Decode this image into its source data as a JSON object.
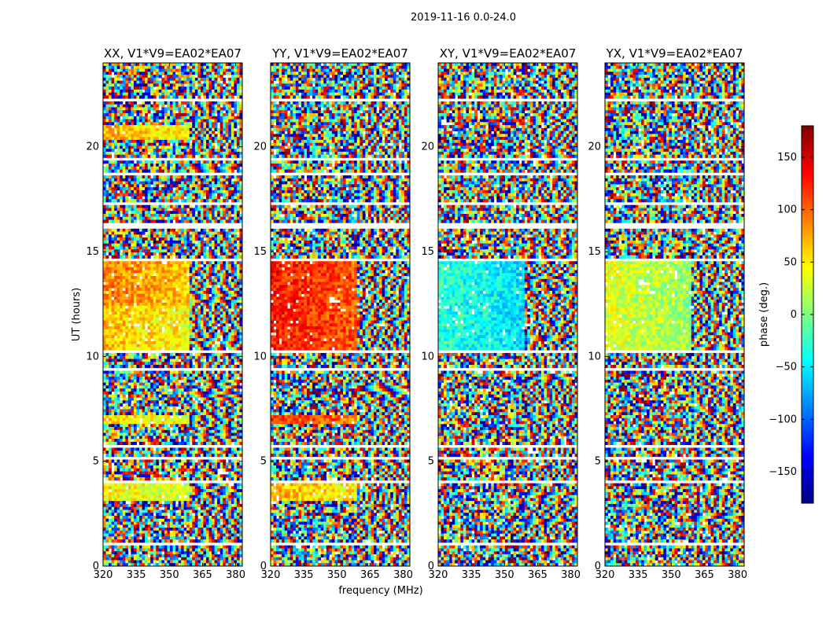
{
  "suptitle": "2019-11-16 0.0-24.0",
  "colors": {
    "background": "#ffffff",
    "missing": "#ffffff",
    "axes": "#000000"
  },
  "chart_data": {
    "type": "heatmap",
    "colormap": "jet",
    "xlabel": "frequency (MHz)",
    "ylabel": "UT (hours)",
    "xlim": [
      320,
      383
    ],
    "ylim": [
      0,
      24
    ],
    "xticks": [
      "320",
      "335",
      "350",
      "365",
      "380"
    ],
    "yticks": [
      "0",
      "5",
      "10",
      "15",
      "20"
    ],
    "panels": [
      {
        "title": "XX, V1*V9=EA02*EA07"
      },
      {
        "title": "YY, V1*V9=EA02*EA07"
      },
      {
        "title": "XY, V1*V9=EA02*EA07"
      },
      {
        "title": "YX, V1*V9=EA02*EA07"
      }
    ],
    "colorbar": {
      "label": "phase (deg.)",
      "range": [
        -180,
        180
      ],
      "ticks": [
        "150",
        "100",
        "50",
        "0",
        "−50",
        "−100",
        "−150"
      ]
    }
  }
}
